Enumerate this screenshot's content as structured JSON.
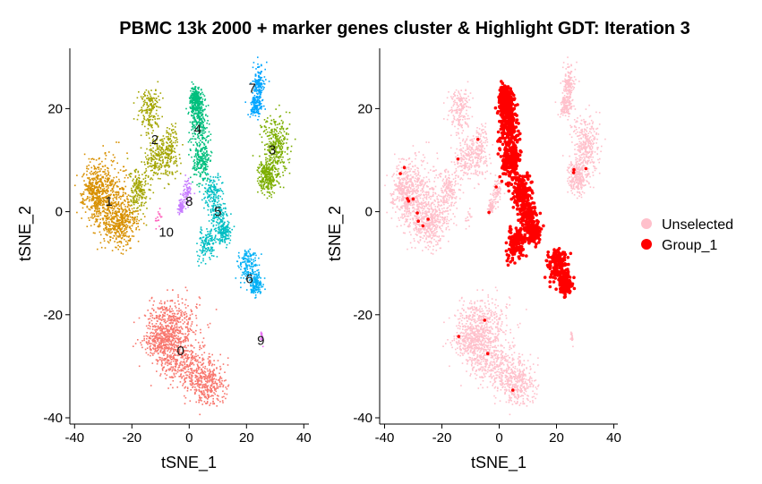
{
  "chart_data": [
    {
      "type": "scatter",
      "title": "PBMC 13k 2000 + marker genes cluster & Highlight GDT: Iteration 3",
      "xlabel": "tSNE_1",
      "ylabel": "tSNE_2",
      "xlim": [
        -42,
        42
      ],
      "ylim": [
        -41,
        33
      ],
      "xticks": [
        -40,
        -20,
        0,
        20,
        40
      ],
      "yticks": [
        -40,
        -20,
        0,
        20
      ],
      "grid": false,
      "legend": "none",
      "clusters": [
        {
          "label": "0",
          "color": "#F8766D",
          "center": [
            -4,
            -27
          ],
          "label_pos": [
            -3,
            -27
          ]
        },
        {
          "label": "1",
          "color": "#D89000",
          "center": [
            -28,
            3
          ],
          "label_pos": [
            -28,
            2
          ]
        },
        {
          "label": "2",
          "color": "#A3A500",
          "center": [
            -12,
            12
          ],
          "label_pos": [
            -12,
            14
          ]
        },
        {
          "label": "3",
          "color": "#7CAE00",
          "center": [
            30,
            11
          ],
          "label_pos": [
            29,
            12
          ]
        },
        {
          "label": "4",
          "color": "#00BF7D",
          "center": [
            3,
            15
          ],
          "label_pos": [
            3,
            16
          ]
        },
        {
          "label": "5",
          "color": "#00BFC4",
          "center": [
            9,
            1
          ],
          "label_pos": [
            10,
            0
          ]
        },
        {
          "label": "6",
          "color": "#00B0F6",
          "center": [
            21,
            -11
          ],
          "label_pos": [
            21,
            -13
          ]
        },
        {
          "label": "7",
          "color": "#00A5FF",
          "center": [
            24,
            24
          ],
          "label_pos": [
            22,
            24
          ]
        },
        {
          "label": "8",
          "color": "#C77CFF",
          "center": [
            -1,
            3
          ],
          "label_pos": [
            0,
            2
          ]
        },
        {
          "label": "9",
          "color": "#E76BF3",
          "center": [
            25,
            -24
          ],
          "label_pos": [
            25,
            -25
          ]
        },
        {
          "label": "10",
          "color": "#FF62BC",
          "center": [
            -11,
            -3
          ],
          "label_pos": [
            -8,
            -4
          ]
        }
      ]
    },
    {
      "type": "scatter",
      "xlabel": "tSNE_1",
      "ylabel": "tSNE_2",
      "xlim": [
        -42,
        42
      ],
      "ylim": [
        -41,
        33
      ],
      "xticks": [
        -40,
        -20,
        0,
        20,
        40
      ],
      "yticks": [
        -40,
        -20,
        0,
        20
      ],
      "grid": false,
      "legend": "right",
      "series": [
        {
          "name": "Unselected",
          "color": "#FFC0CB"
        },
        {
          "name": "Group_1",
          "color": "#FF0000"
        }
      ]
    }
  ]
}
